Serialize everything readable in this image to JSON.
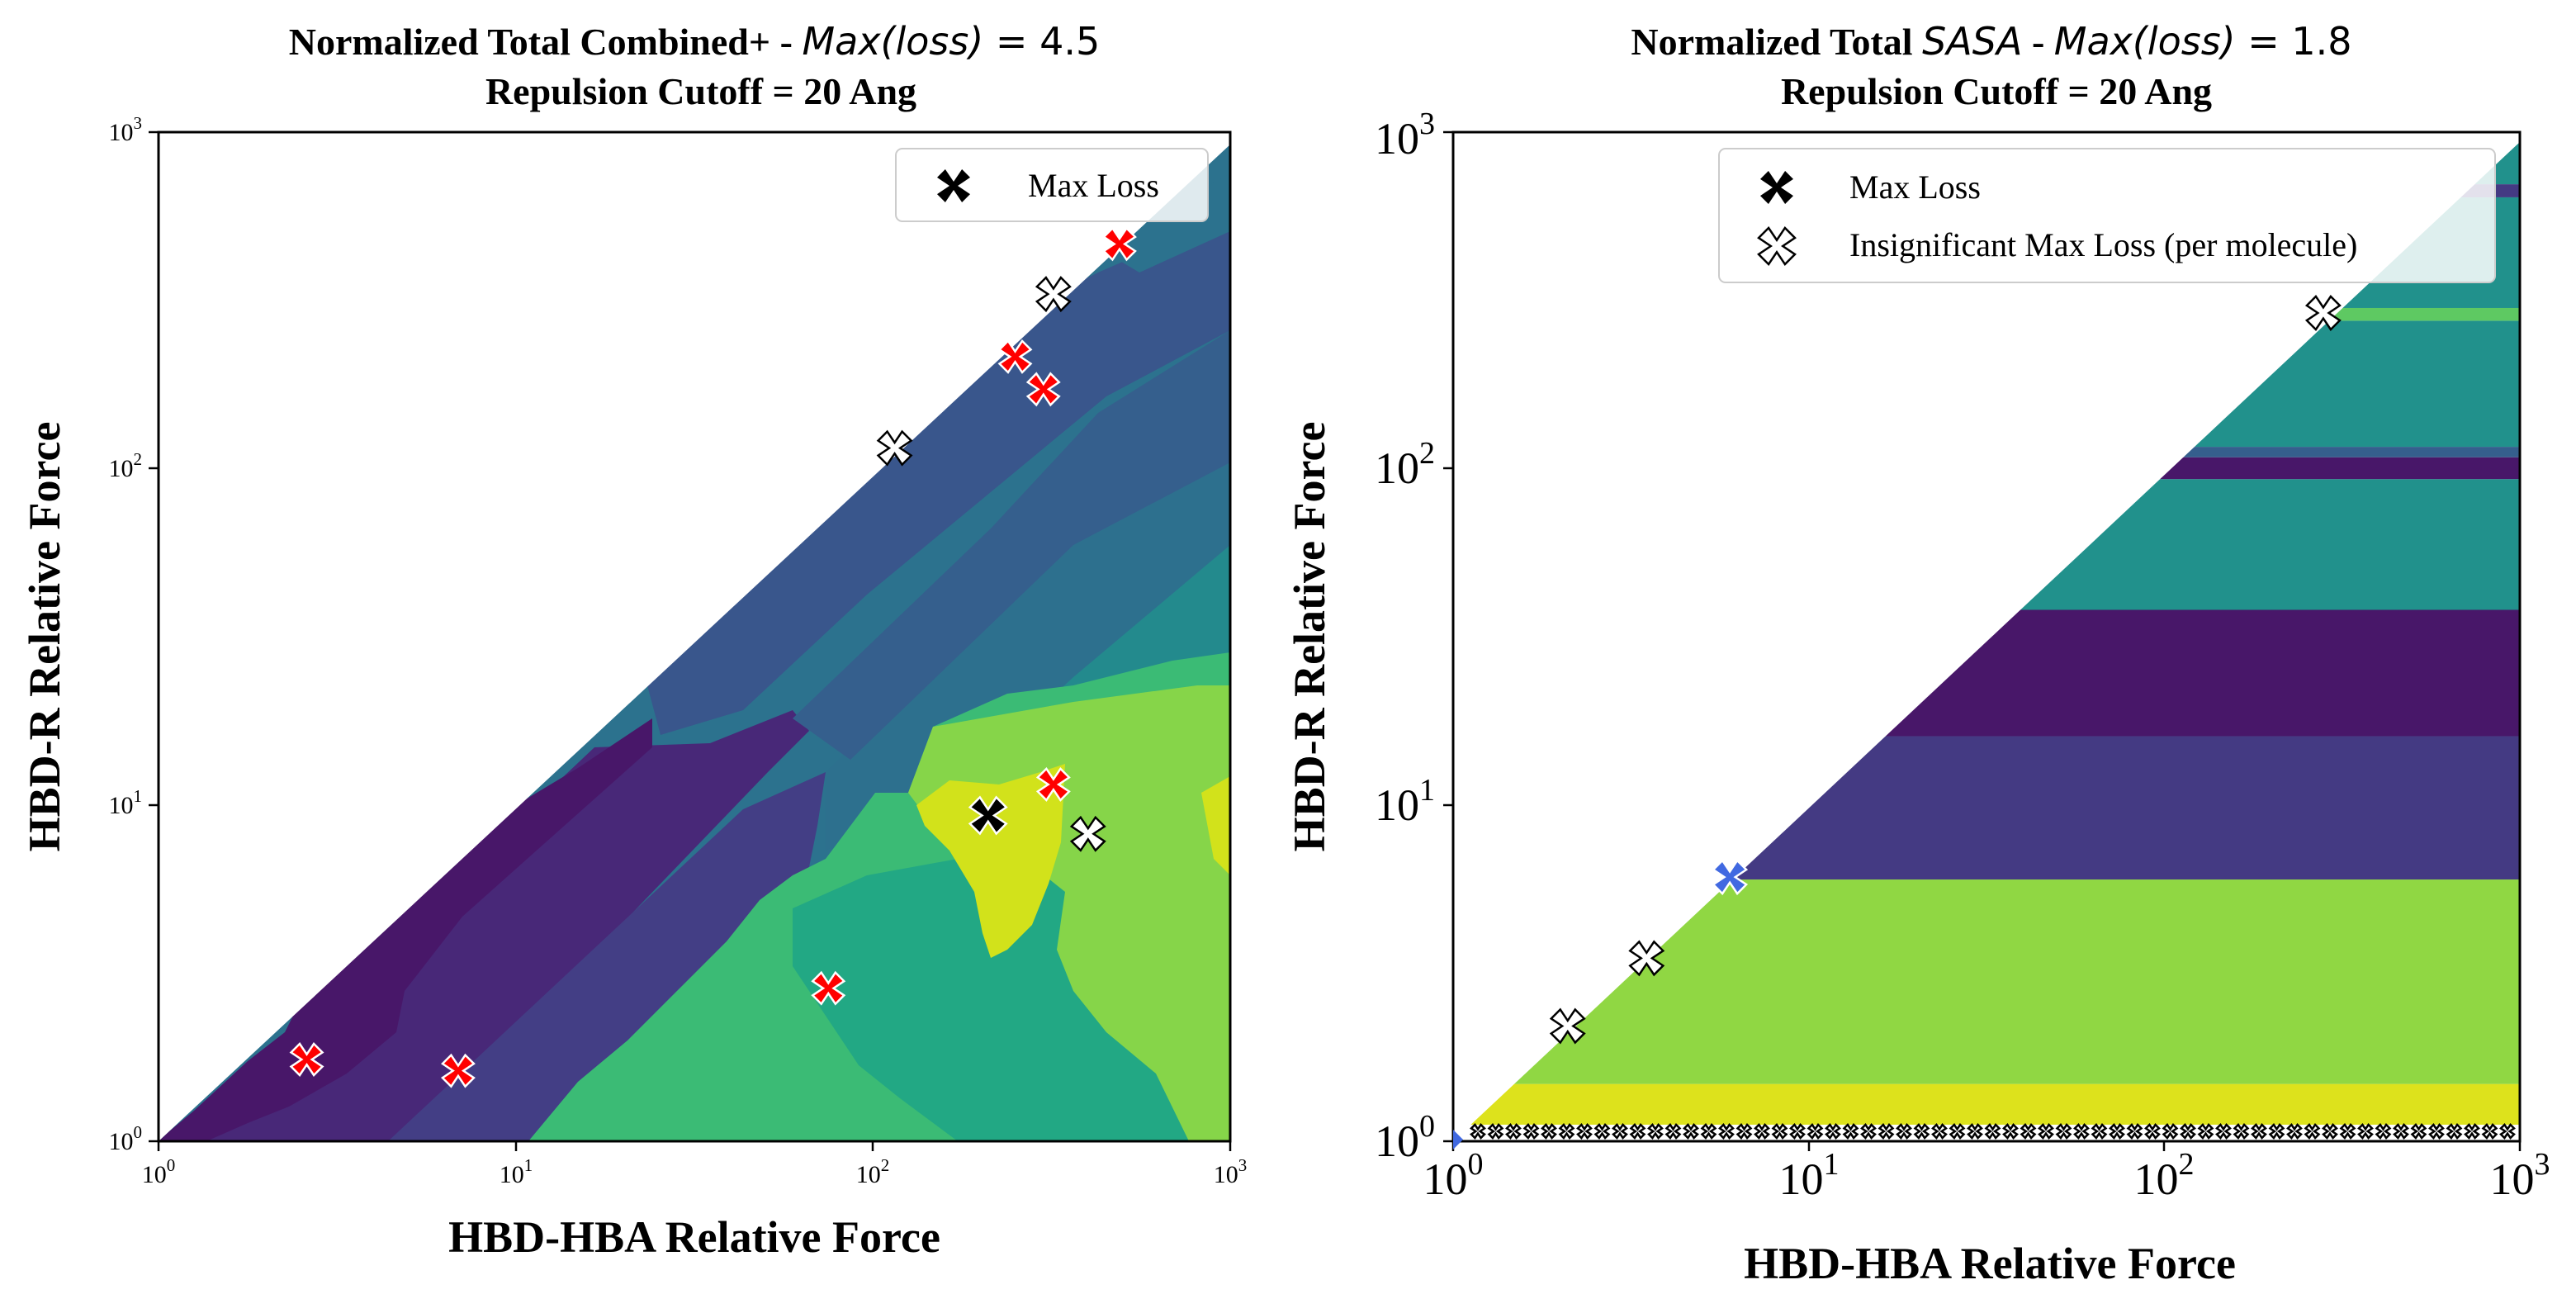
{
  "chart_data": [
    {
      "type": "heatmap",
      "title_prefix": "Normalized Total Combined+ - ",
      "title_math": "Max(loss)",
      "title_value": " = 4.5",
      "subtitle": "Repulsion Cutoff = 20 Ang",
      "xlabel": "HBD-HBA Relative Force",
      "ylabel": "HBD-R Relative Force",
      "xscale": "log",
      "yscale": "log",
      "xlim": [
        1,
        1000
      ],
      "ylim": [
        1,
        1000
      ],
      "ticks": [
        {
          "base": "10",
          "exp": "0",
          "value": 1
        },
        {
          "base": "10",
          "exp": "1",
          "value": 10
        },
        {
          "base": "10",
          "exp": "2",
          "value": 100
        },
        {
          "base": "10",
          "exp": "3",
          "value": 1000
        }
      ],
      "colormap": "viridis",
      "legend": {
        "placement": "upper right",
        "entries": [
          {
            "label": "Max Loss",
            "marker": "x-black"
          }
        ]
      },
      "max_loss_point": {
        "x": 210,
        "y": 9.3
      },
      "red_points": [
        {
          "x": 2.6,
          "y": 1.75
        },
        {
          "x": 6.9,
          "y": 1.62
        },
        {
          "x": 75,
          "y": 2.85
        },
        {
          "x": 320,
          "y": 11.5
        },
        {
          "x": 250,
          "y": 215
        },
        {
          "x": 300,
          "y": 172
        },
        {
          "x": 490,
          "y": 465
        }
      ],
      "white_points": [
        {
          "x": 115,
          "y": 115
        },
        {
          "x": 320,
          "y": 330
        },
        {
          "x": 400,
          "y": 8.2
        }
      ]
    },
    {
      "type": "heatmap",
      "title_prefix": "Normalized Total ",
      "title_math": "SASA",
      "title_mid": " - ",
      "title_math2": "Max(loss)",
      "title_value": " = 1.8",
      "subtitle": "Repulsion Cutoff = 20 Ang",
      "xlabel": "HBD-HBA Relative Force",
      "ylabel": "HBD-R Relative Force",
      "xscale": "log",
      "yscale": "log",
      "xlim": [
        1,
        1000
      ],
      "ylim": [
        1,
        1000
      ],
      "ticks": [
        {
          "base": "10",
          "exp": "0",
          "value": 1
        },
        {
          "base": "10",
          "exp": "1",
          "value": 10
        },
        {
          "base": "10",
          "exp": "2",
          "value": 100
        },
        {
          "base": "10",
          "exp": "3",
          "value": 1000
        }
      ],
      "colormap": "viridis",
      "legend": {
        "placement": "upper center",
        "entries": [
          {
            "label": "Max Loss",
            "marker": "x-black"
          },
          {
            "label": "Insignificant Max Loss (per molecule)",
            "marker": "x-white"
          }
        ]
      },
      "blue_points": [
        {
          "x": 6.0,
          "y": 6.1
        }
      ],
      "white_points": [
        {
          "x": 2.1,
          "y": 2.2
        },
        {
          "x": 3.5,
          "y": 3.5
        },
        {
          "x": 280,
          "y": 290
        }
      ],
      "bands": [
        {
          "y_from": 1.0,
          "y_to": 1.12,
          "color": "#ffffff"
        },
        {
          "y_from": 1.12,
          "y_to": 1.48,
          "color": "#dde21c"
        },
        {
          "y_from": 1.48,
          "y_to": 6.0,
          "color": "#90d743"
        },
        {
          "y_from": 6.0,
          "y_to": 16.0,
          "color": "#443a83"
        },
        {
          "y_from": 16.0,
          "y_to": 38.0,
          "color": "#481769"
        },
        {
          "y_from": 38.0,
          "y_to": 93.0,
          "color": "#21918c"
        },
        {
          "y_from": 93.0,
          "y_to": 108.0,
          "color": "#481769"
        },
        {
          "y_from": 108.0,
          "y_to": 116.0,
          "color": "#355f8d"
        },
        {
          "y_from": 116.0,
          "y_to": 275.0,
          "color": "#21918c"
        },
        {
          "y_from": 275.0,
          "y_to": 300.0,
          "color": "#5ec962"
        },
        {
          "y_from": 300.0,
          "y_to": 640.0,
          "color": "#21918c"
        },
        {
          "y_from": 640.0,
          "y_to": 700.0,
          "color": "#443a83"
        },
        {
          "y_from": 700.0,
          "y_to": 1000.0,
          "color": "#21918c"
        }
      ]
    }
  ]
}
